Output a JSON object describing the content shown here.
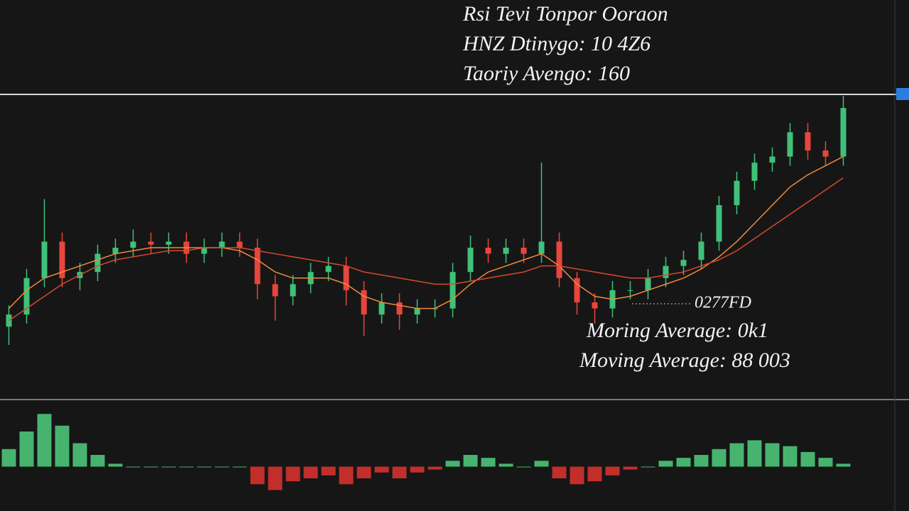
{
  "chart_data": [
    {
      "type": "candlestick",
      "annotations": [
        "Rsi Tevi Tonpor Ooraon",
        "HNZ Dtinygo: 10 4Z6",
        "Taoriy Avengo: 160",
        "0277FD",
        "Moring Average: 0k1",
        "Moving Average: 88 003"
      ],
      "up_color": "#3fc17a",
      "down_color": "#e8453c",
      "open": [
        24,
        28,
        40,
        52,
        40,
        42,
        48,
        50,
        52,
        51,
        52,
        48,
        50,
        52,
        50,
        38,
        34,
        38,
        42,
        44,
        36,
        28,
        32,
        28,
        30,
        30,
        42,
        50,
        48,
        50,
        48,
        52,
        40,
        32,
        30,
        36,
        36,
        40,
        44,
        46,
        52,
        64,
        72,
        78,
        80,
        88,
        82,
        80
      ],
      "high": [
        31,
        43,
        66,
        55,
        45,
        51,
        53,
        56,
        55,
        55,
        55,
        53,
        55,
        55,
        53,
        41,
        41,
        45,
        47,
        47,
        39,
        35,
        35,
        33,
        33,
        45,
        54,
        53,
        53,
        53,
        78,
        55,
        42,
        35,
        39,
        39,
        43,
        47,
        49,
        55,
        67,
        75,
        81,
        83,
        91,
        91,
        85,
        100
      ],
      "low": [
        18,
        25,
        37,
        37,
        36,
        39,
        45,
        47,
        48,
        48,
        45,
        45,
        47,
        47,
        33,
        26,
        31,
        35,
        39,
        31,
        21,
        25,
        23,
        25,
        27,
        27,
        39,
        45,
        45,
        45,
        45,
        37,
        28,
        25,
        27,
        33,
        33,
        37,
        41,
        43,
        49,
        61,
        69,
        75,
        77,
        79,
        77,
        77
      ],
      "close": [
        28,
        40,
        52,
        40,
        42,
        48,
        50,
        52,
        51,
        52,
        48,
        50,
        52,
        50,
        38,
        34,
        38,
        42,
        44,
        36,
        28,
        32,
        28,
        30,
        30,
        42,
        50,
        48,
        50,
        48,
        52,
        40,
        32,
        30,
        36,
        36,
        40,
        44,
        46,
        52,
        64,
        72,
        78,
        80,
        88,
        82,
        80,
        96
      ],
      "series": [
        {
          "color": "#f08a3c",
          "values": [
            30,
            36,
            40,
            42,
            44,
            46,
            48,
            49,
            50,
            50,
            50,
            50,
            50,
            49,
            46,
            42,
            40,
            40,
            40,
            38,
            34,
            32,
            31,
            30,
            30,
            33,
            38,
            42,
            44,
            46,
            48,
            44,
            38,
            34,
            33,
            34,
            36,
            38,
            40,
            43,
            47,
            52,
            58,
            64,
            70,
            74,
            77,
            80
          ]
        },
        {
          "color": "#d9482b",
          "values": [
            26,
            30,
            34,
            38,
            41,
            44,
            46,
            47,
            48,
            49,
            49,
            50,
            50,
            50,
            49,
            48,
            47,
            46,
            45,
            44,
            42,
            41,
            40,
            39,
            38,
            38,
            39,
            40,
            41,
            42,
            44,
            44,
            43,
            42,
            41,
            40,
            40,
            41,
            42,
            44,
            46,
            49,
            53,
            57,
            61,
            65,
            69,
            73
          ]
        }
      ],
      "ylim": [
        0,
        100
      ]
    },
    {
      "type": "histogram-bar",
      "values": [
        6,
        12,
        18,
        14,
        8,
        4,
        1,
        0,
        0,
        0,
        0,
        0,
        0,
        0,
        -6,
        -8,
        -5,
        -4,
        -3,
        -6,
        -4,
        -2,
        -4,
        -2,
        -1,
        2,
        4,
        3,
        1,
        0,
        2,
        -4,
        -6,
        -5,
        -3,
        -1,
        0,
        2,
        3,
        4,
        6,
        8,
        9,
        8,
        7,
        5,
        3,
        1
      ],
      "up_color": "#4fd07f",
      "down_color": "#e0322e",
      "ylim": [
        -20,
        20
      ]
    }
  ]
}
